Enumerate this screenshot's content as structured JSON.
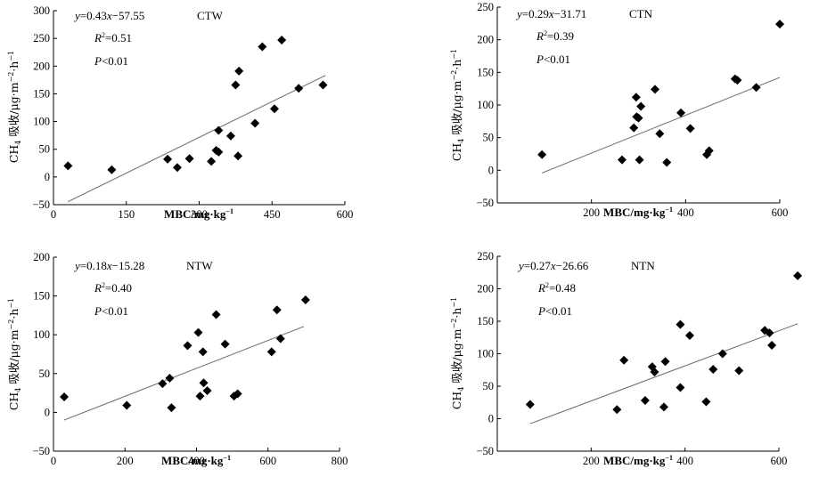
{
  "chart_data": [
    {
      "type": "scatter",
      "title": "CTW",
      "xlabel": "MBC/mg·kg⁻¹",
      "ylabel": "CH₄ 吸收/μg·m⁻²·h⁻¹",
      "xlim": [
        0,
        600
      ],
      "ylim": [
        -50,
        300
      ],
      "xticks": [
        0,
        150,
        300,
        450,
        600
      ],
      "yticks": [
        -50,
        0,
        50,
        100,
        150,
        200,
        250,
        300
      ],
      "annotations": {
        "eq_prefix": "y",
        "eq_body": "=0.43x−57.55",
        "r2_value": "=0.51",
        "p_value": "<0.01"
      },
      "trend": {
        "slope": 0.43,
        "intercept": -57.55,
        "x_range": [
          30,
          560
        ]
      },
      "points": [
        [
          30,
          20
        ],
        [
          120,
          13
        ],
        [
          235,
          32
        ],
        [
          255,
          17
        ],
        [
          280,
          33
        ],
        [
          325,
          28
        ],
        [
          335,
          48
        ],
        [
          340,
          84
        ],
        [
          340,
          45
        ],
        [
          365,
          74
        ],
        [
          375,
          166
        ],
        [
          380,
          38
        ],
        [
          382,
          191
        ],
        [
          415,
          97
        ],
        [
          430,
          235
        ],
        [
          455,
          123
        ],
        [
          470,
          247
        ],
        [
          505,
          160
        ],
        [
          555,
          166
        ]
      ]
    },
    {
      "type": "scatter",
      "title": "CTN",
      "xlabel": "MBC/mg·kg⁻¹",
      "ylabel": "CH₄ 吸收/μg·m⁻²·h⁻¹",
      "xlim": [
        0,
        600
      ],
      "ylim": [
        -50,
        250
      ],
      "xticks": [
        200,
        400,
        600
      ],
      "yticks": [
        -50,
        0,
        50,
        100,
        150,
        200,
        250
      ],
      "annotations": {
        "eq_prefix": "y",
        "eq_body": "=0.29x−31.71",
        "r2_value": "=0.39",
        "p_value": "<0.01"
      },
      "trend": {
        "slope": 0.29,
        "intercept": -31.71,
        "x_range": [
          95,
          600
        ]
      },
      "points": [
        [
          95,
          24
        ],
        [
          265,
          16
        ],
        [
          290,
          65
        ],
        [
          295,
          112
        ],
        [
          296,
          82
        ],
        [
          300,
          80
        ],
        [
          302,
          16
        ],
        [
          305,
          98
        ],
        [
          335,
          124
        ],
        [
          345,
          56
        ],
        [
          360,
          12
        ],
        [
          390,
          88
        ],
        [
          410,
          64
        ],
        [
          445,
          24
        ],
        [
          450,
          30
        ],
        [
          505,
          140
        ],
        [
          510,
          138
        ],
        [
          550,
          127
        ],
        [
          600,
          224
        ]
      ]
    },
    {
      "type": "scatter",
      "title": "NTW",
      "xlabel": "MBC/mg·kg⁻¹",
      "ylabel": "CH₄ 吸收/μg·m⁻²·h⁻¹",
      "xlim": [
        0,
        800
      ],
      "ylim": [
        -50,
        200
      ],
      "xticks": [
        0,
        200,
        400,
        600,
        800
      ],
      "yticks": [
        -50,
        0,
        50,
        100,
        150,
        200
      ],
      "annotations": {
        "eq_prefix": "y",
        "eq_body": "=0.18x−15.28",
        "r2_value": "=0.40",
        "p_value": "<0.01"
      },
      "trend": {
        "slope": 0.18,
        "intercept": -15.28,
        "x_range": [
          30,
          700
        ]
      },
      "points": [
        [
          30,
          20
        ],
        [
          205,
          9
        ],
        [
          305,
          37
        ],
        [
          325,
          44
        ],
        [
          330,
          6
        ],
        [
          375,
          86
        ],
        [
          405,
          103
        ],
        [
          410,
          21
        ],
        [
          418,
          78
        ],
        [
          420,
          38
        ],
        [
          430,
          28
        ],
        [
          455,
          126
        ],
        [
          480,
          88
        ],
        [
          505,
          21
        ],
        [
          515,
          24
        ],
        [
          610,
          78
        ],
        [
          625,
          132
        ],
        [
          635,
          95
        ],
        [
          705,
          145
        ]
      ]
    },
    {
      "type": "scatter",
      "title": "NTN",
      "xlabel": "MBC/mg·kg⁻¹",
      "ylabel": "CH₄ 吸收/μg·m⁻²·h⁻¹",
      "xlim": [
        0,
        600
      ],
      "ylim": [
        -50,
        250
      ],
      "xticks": [
        200,
        400,
        600
      ],
      "yticks": [
        -50,
        0,
        50,
        100,
        150,
        200,
        250
      ],
      "annotations": {
        "eq_prefix": "y",
        "eq_body": "=0.27x−26.66",
        "r2_value": "=0.48",
        "p_value": "<0.01"
      },
      "trend": {
        "slope": 0.27,
        "intercept": -26.66,
        "x_range": [
          70,
          640
        ]
      },
      "points": [
        [
          70,
          22
        ],
        [
          255,
          14
        ],
        [
          270,
          90
        ],
        [
          315,
          28
        ],
        [
          330,
          80
        ],
        [
          335,
          72
        ],
        [
          355,
          18
        ],
        [
          358,
          88
        ],
        [
          390,
          48
        ],
        [
          390,
          145
        ],
        [
          410,
          128
        ],
        [
          445,
          26
        ],
        [
          460,
          76
        ],
        [
          480,
          100
        ],
        [
          515,
          74
        ],
        [
          570,
          136
        ],
        [
          580,
          132
        ],
        [
          585,
          113
        ],
        [
          640,
          220
        ]
      ]
    }
  ]
}
